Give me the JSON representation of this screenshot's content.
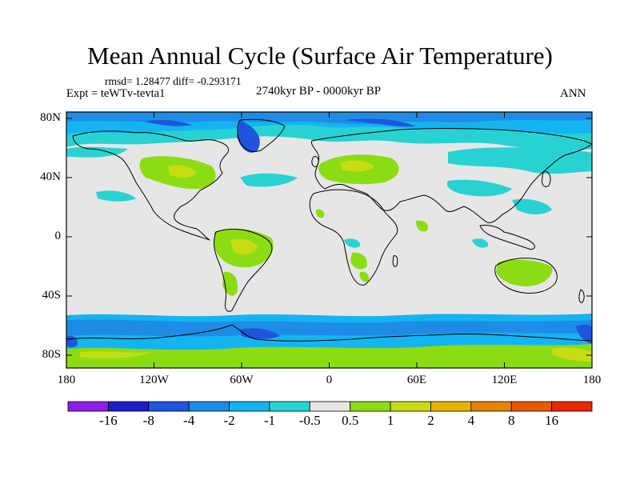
{
  "title": "Mean Annual Cycle (Surface Air Temperature)",
  "stats": "rmsd= 1.28477 diff= -0.293171",
  "experiment": "Expt = teWTv-tevta1",
  "period": "2740kyr BP - 0000kyr BP",
  "season": "ANN",
  "lat_ticks": [
    "80N",
    "40N",
    "0",
    "40S",
    "80S"
  ],
  "lon_ticks": [
    "180",
    "120W",
    "60W",
    "0",
    "60E",
    "120E",
    "180"
  ],
  "colorbar": {
    "labels": [
      "-16",
      "-8",
      "-4",
      "-2",
      "-1",
      "-0.5",
      "0.5",
      "1",
      "2",
      "4",
      "8",
      "16"
    ],
    "colors": [
      "#8c1ee6",
      "#1e1ec8",
      "#1e55dc",
      "#1e8ce6",
      "#14b4f0",
      "#28d2d2",
      "#e6e6e6",
      "#8cdc14",
      "#c8dc14",
      "#e6b400",
      "#e68200",
      "#e65a00",
      "#e62800"
    ]
  },
  "legend": {
    "land_ocean_default": "#e6e6e6",
    "coastline": "#000000"
  }
}
